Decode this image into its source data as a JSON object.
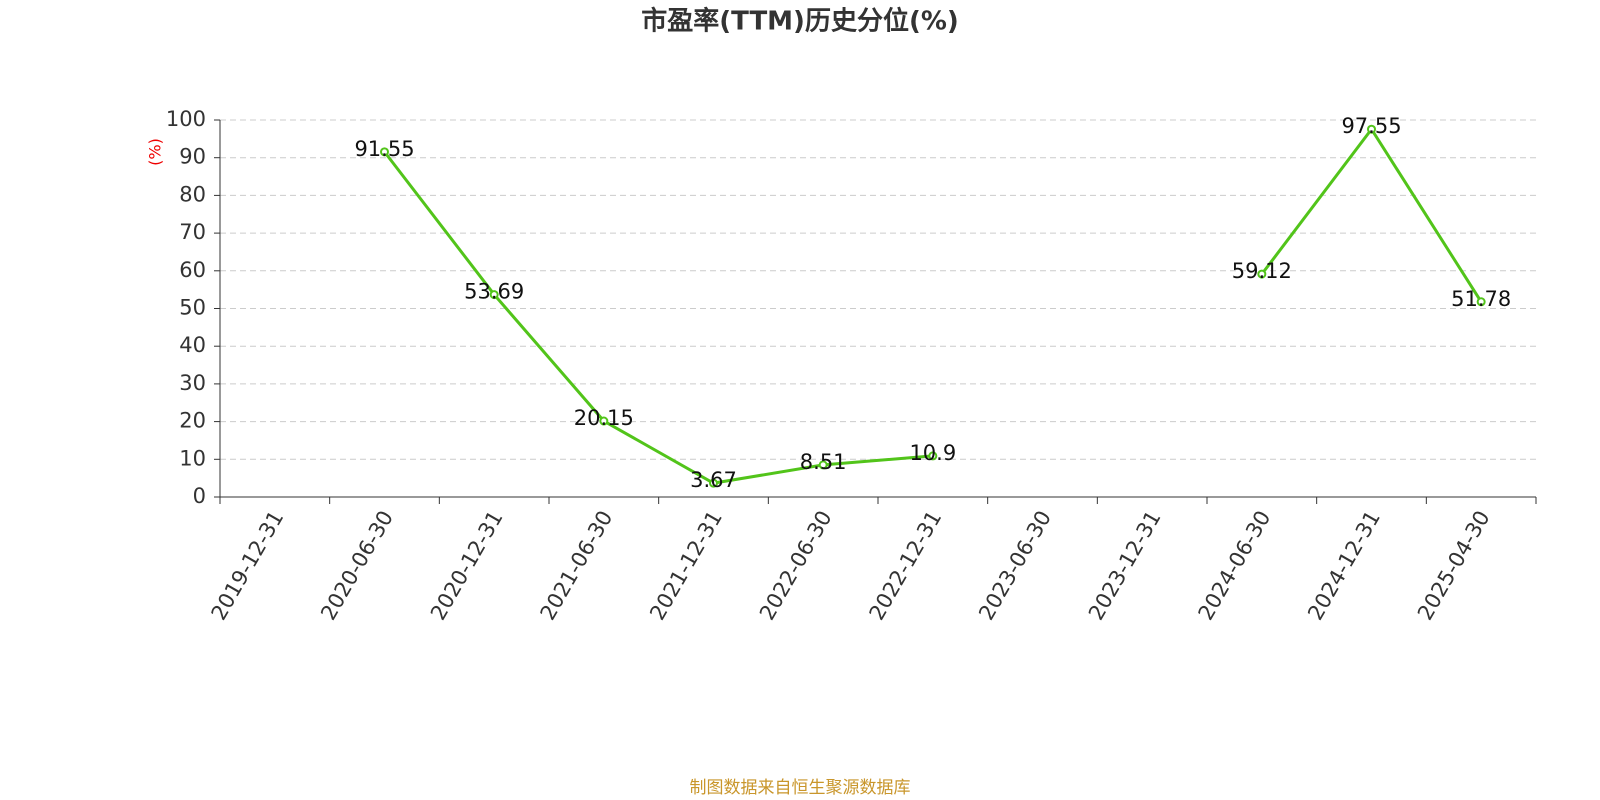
{
  "chart_data": {
    "type": "line",
    "title": "市盈率(TTM)历史分位(%)",
    "y_label": "(%)",
    "source": "制图数据来自恒生聚源数据库",
    "categories": [
      "2019-12-31",
      "2020-06-30",
      "2020-12-31",
      "2021-06-30",
      "2021-12-31",
      "2022-06-30",
      "2022-12-31",
      "2023-06-30",
      "2023-12-31",
      "2024-06-30",
      "2024-12-31",
      "2025-04-30"
    ],
    "series": [
      {
        "name": "市盈率(TTM)历史分位",
        "color": "#52c41a",
        "values": [
          null,
          91.55,
          53.69,
          20.15,
          3.67,
          8.51,
          10.9,
          null,
          null,
          59.12,
          97.55,
          51.78
        ]
      }
    ],
    "ylim": [
      0,
      100
    ],
    "yticks": [
      0,
      10,
      20,
      30,
      40,
      50,
      60,
      70,
      80,
      90,
      100
    ],
    "grid": true
  }
}
